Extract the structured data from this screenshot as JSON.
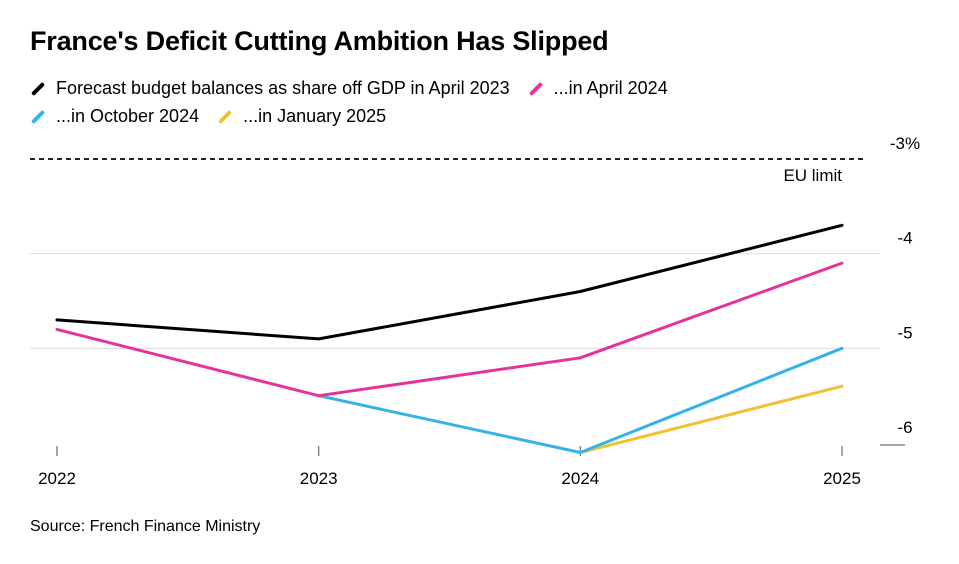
{
  "title": "France's Deficit Cutting Ambition Has Slipped",
  "legend": [
    {
      "label": "Forecast budget balances as share off GDP in April 2023",
      "color": "#000000"
    },
    {
      "label": "...in April 2024",
      "color": "#e6339a"
    },
    {
      "label": "...in October 2024",
      "color": "#35b3e8"
    },
    {
      "label": "...in January 2025",
      "color": "#f2c22e"
    }
  ],
  "source": "Source: French Finance Ministry",
  "chart_data": {
    "type": "line",
    "title": "France's Deficit Cutting Ambition Has Slipped",
    "xlabel": "",
    "ylabel": "",
    "categories": [
      "2022",
      "2023",
      "2024",
      "2025"
    ],
    "ylim": [
      -6.2,
      -2.9
    ],
    "yticks": [
      -3,
      -4,
      -5,
      -6
    ],
    "ytick_labels": [
      "-3%",
      "-4",
      "-5",
      "-6"
    ],
    "reference_line": {
      "value": -3,
      "label": "EU limit",
      "style": "dashed"
    },
    "series": [
      {
        "name": "Forecast budget balances as share off GDP in April 2023",
        "color": "#000000",
        "x": [
          "2022",
          "2023",
          "2024",
          "2025"
        ],
        "values": [
          -4.7,
          -4.9,
          -4.4,
          -3.7
        ]
      },
      {
        "name": "...in April 2024",
        "color": "#e6339a",
        "x": [
          "2022",
          "2023",
          "2024",
          "2025"
        ],
        "values": [
          -4.8,
          -5.5,
          -5.1,
          -4.1
        ]
      },
      {
        "name": "...in October 2024",
        "color": "#35b3e8",
        "x": [
          "2023",
          "2024",
          "2025"
        ],
        "values": [
          -5.5,
          -6.1,
          -5.0
        ]
      },
      {
        "name": "...in January 2025",
        "color": "#f2c22e",
        "x": [
          "2024",
          "2025"
        ],
        "values": [
          -6.1,
          -5.4
        ]
      }
    ]
  }
}
